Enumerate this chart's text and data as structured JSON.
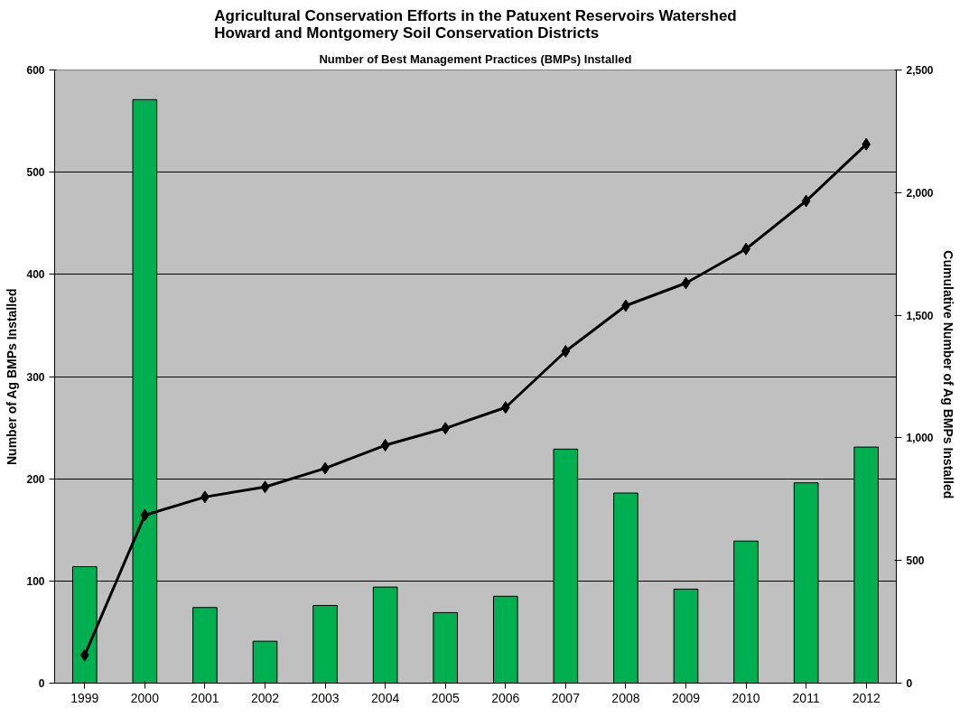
{
  "chart_data": {
    "type": "bar",
    "title": "Agricultural Conservation Efforts in the Patuxent Reservoirs Watershed\nHoward and Montgomery Soil Conservation Districts",
    "subtitle": "Number of Best Management Practices (BMPs) Installed",
    "ylabel": "Number of Ag BMPs Installed",
    "y2label": "Cumulative  Number of Ag BMPs Installed",
    "categories": [
      "1999",
      "2000",
      "2001",
      "2002",
      "2003",
      "2004",
      "2005",
      "2006",
      "2007",
      "2008",
      "2009",
      "2010",
      "2011",
      "2012"
    ],
    "series": [
      {
        "color": "#00b050",
        "values": [
          114,
          571,
          74,
          41,
          76,
          94,
          69,
          85,
          229,
          186,
          92,
          139,
          196,
          231
        ]
      },
      {
        "type": "line",
        "axis": "y2",
        "color": "#000000",
        "marker": "diamond",
        "line_style": "solid",
        "values": [
          114,
          685,
          759,
          800,
          876,
          970,
          1039,
          1124,
          1353,
          1539,
          1631,
          1770,
          1966,
          2197
        ]
      }
    ],
    "ylim": [
      0,
      600
    ],
    "yticks": [
      0,
      100,
      200,
      300,
      400,
      500,
      600
    ],
    "y2lim": [
      0,
      2500
    ],
    "y2ticks": [
      0,
      {
        "value": 500,
        "label": "500"
      },
      {
        "value": 1000,
        "label": "1,000"
      },
      {
        "value": 1500,
        "label": "1,500"
      },
      {
        "value": 2000,
        "label": "2,000"
      },
      {
        "value": 2500,
        "label": "2,500"
      }
    ],
    "grid": "y"
  }
}
